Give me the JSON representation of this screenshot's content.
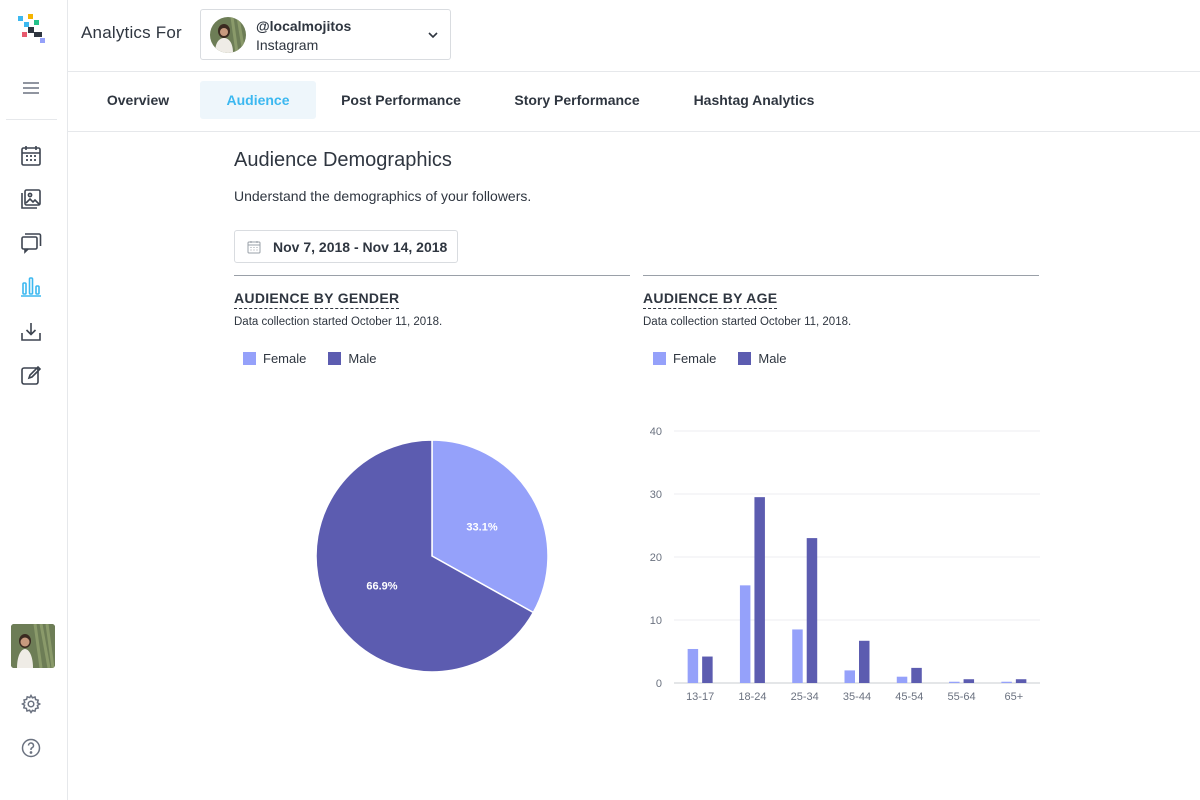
{
  "header": {
    "title": "Analytics For",
    "account": {
      "handle": "@localmojitos",
      "platform": "Instagram"
    }
  },
  "tabs": [
    {
      "label": "Overview",
      "active": false
    },
    {
      "label": "Audience",
      "active": true
    },
    {
      "label": "Post Performance",
      "active": false
    },
    {
      "label": "Story Performance",
      "active": false
    },
    {
      "label": "Hashtag Analytics",
      "active": false
    }
  ],
  "sidebar": {
    "icons": [
      "menu-icon",
      "calendar-icon",
      "image-library-icon",
      "comments-icon",
      "analytics-icon",
      "download-icon",
      "edit-icon",
      "settings-icon",
      "help-icon"
    ],
    "active": "analytics-icon"
  },
  "main": {
    "title": "Audience Demographics",
    "subtitle": "Understand the demographics of your followers.",
    "date_range": "Nov 7, 2018 - Nov 14, 2018"
  },
  "gender_panel": {
    "title": "AUDIENCE BY GENDER",
    "note": "Data collection started October 11, 2018.",
    "legend": [
      "Female",
      "Male"
    ]
  },
  "age_panel": {
    "title": "AUDIENCE BY AGE",
    "note": "Data collection started October 11, 2018.",
    "legend": [
      "Female",
      "Male"
    ]
  },
  "colors": {
    "accent": "#3cb8f0",
    "female": "#95a1fa",
    "male": "#5c5cb0",
    "text": "#2f3640"
  },
  "chart_data": [
    {
      "type": "pie",
      "title": "AUDIENCE BY GENDER",
      "slices": [
        {
          "label": "Female",
          "value": 33.1,
          "display": "33.1%"
        },
        {
          "label": "Male",
          "value": 66.9,
          "display": "66.9%"
        }
      ]
    },
    {
      "type": "bar",
      "title": "AUDIENCE BY AGE",
      "categories": [
        "13-17",
        "18-24",
        "25-34",
        "35-44",
        "45-54",
        "55-64",
        "65+"
      ],
      "series": [
        {
          "name": "Female",
          "values": [
            5.4,
            15.5,
            8.5,
            2.0,
            1.0,
            0.2,
            0.2
          ]
        },
        {
          "name": "Male",
          "values": [
            4.2,
            29.5,
            23.0,
            6.7,
            2.4,
            0.6,
            0.6
          ]
        }
      ],
      "yticks": [
        "0",
        "10",
        "20",
        "30",
        "40"
      ],
      "ylim": [
        0,
        40
      ],
      "grid": true
    }
  ]
}
